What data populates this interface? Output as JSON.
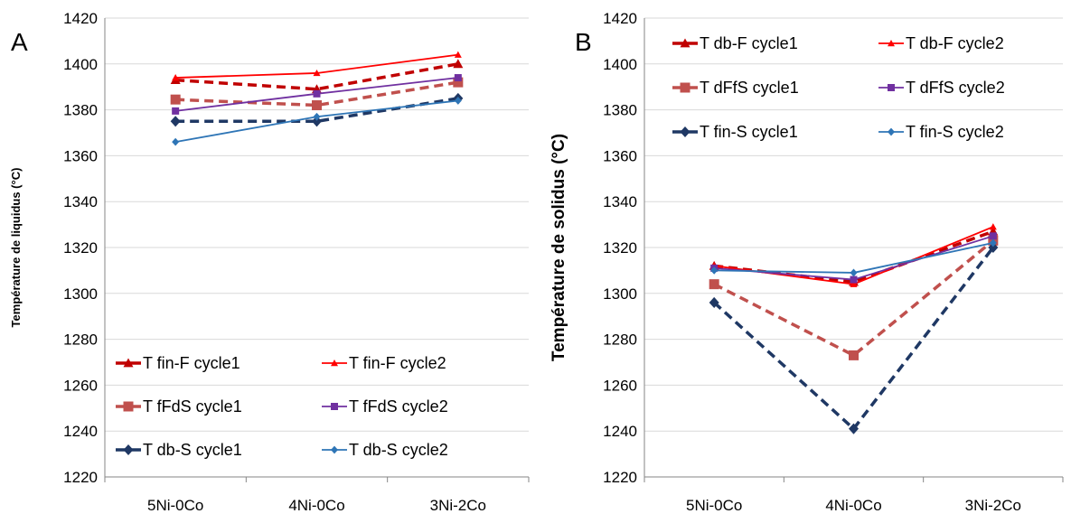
{
  "chart_data": [
    {
      "type": "line",
      "panel_label": "A",
      "title": "",
      "xlabel": "",
      "ylabel": "Température de liquidus (°C)",
      "categories": [
        "5Ni-0Co",
        "4Ni-0Co",
        "3Ni-2Co"
      ],
      "ylim": [
        1220,
        1420
      ],
      "yticks": [
        1220,
        1240,
        1260,
        1280,
        1300,
        1320,
        1340,
        1360,
        1380,
        1400,
        1420
      ],
      "grid": true,
      "legend_position": "bottom-inside",
      "series": [
        {
          "name": "T fin-F cycle1",
          "values": [
            1393,
            1389,
            1400
          ],
          "color": "#c00000",
          "dash": true,
          "marker": "triangle",
          "bold": true
        },
        {
          "name": "T fin-F cycle2",
          "values": [
            1394,
            1396,
            1404
          ],
          "color": "#ff0000",
          "dash": false,
          "marker": "triangle",
          "bold": false
        },
        {
          "name": "T fFdS cycle1",
          "values": [
            1384.5,
            1382,
            1392
          ],
          "color": "#c0504d",
          "dash": true,
          "marker": "square",
          "bold": true
        },
        {
          "name": "T fFdS cycle2",
          "values": [
            1379.5,
            1387,
            1394
          ],
          "color": "#7030a0",
          "dash": false,
          "marker": "square",
          "bold": false
        },
        {
          "name": "T db-S cycle1",
          "values": [
            1375,
            1375,
            1385
          ],
          "color": "#1f3864",
          "dash": true,
          "marker": "diamond",
          "bold": true
        },
        {
          "name": "T db-S cycle2",
          "values": [
            1366,
            1377,
            1384
          ],
          "color": "#2e75b6",
          "dash": false,
          "marker": "diamond",
          "bold": false
        }
      ]
    },
    {
      "type": "line",
      "panel_label": "B",
      "title": "",
      "xlabel": "",
      "ylabel": "Température de solidus (°C)",
      "categories": [
        "5Ni-0Co",
        "4Ni-0Co",
        "3Ni-2Co"
      ],
      "ylim": [
        1220,
        1420
      ],
      "yticks": [
        1220,
        1240,
        1260,
        1280,
        1300,
        1320,
        1340,
        1360,
        1380,
        1400,
        1420
      ],
      "grid": true,
      "legend_position": "top-inside",
      "series": [
        {
          "name": "T db-F cycle1",
          "values": [
            1312,
            1305,
            1327
          ],
          "color": "#c00000",
          "dash": true,
          "marker": "triangle",
          "bold": true
        },
        {
          "name": "T db-F cycle2",
          "values": [
            1312,
            1304,
            1329
          ],
          "color": "#ff0000",
          "dash": false,
          "marker": "triangle",
          "bold": false
        },
        {
          "name": "T dFfS cycle1",
          "values": [
            1304,
            1273,
            1323
          ],
          "color": "#c0504d",
          "dash": true,
          "marker": "square",
          "bold": true
        },
        {
          "name": "T dFfS cycle2",
          "values": [
            1311,
            1306,
            1325
          ],
          "color": "#7030a0",
          "dash": false,
          "marker": "square",
          "bold": false
        },
        {
          "name": "T fin-S cycle1",
          "values": [
            1296,
            1241,
            1320
          ],
          "color": "#1f3864",
          "dash": true,
          "marker": "diamond",
          "bold": true
        },
        {
          "name": "T fin-S cycle2",
          "values": [
            1310,
            1309,
            1322
          ],
          "color": "#2e75b6",
          "dash": false,
          "marker": "diamond",
          "bold": false
        }
      ]
    }
  ]
}
